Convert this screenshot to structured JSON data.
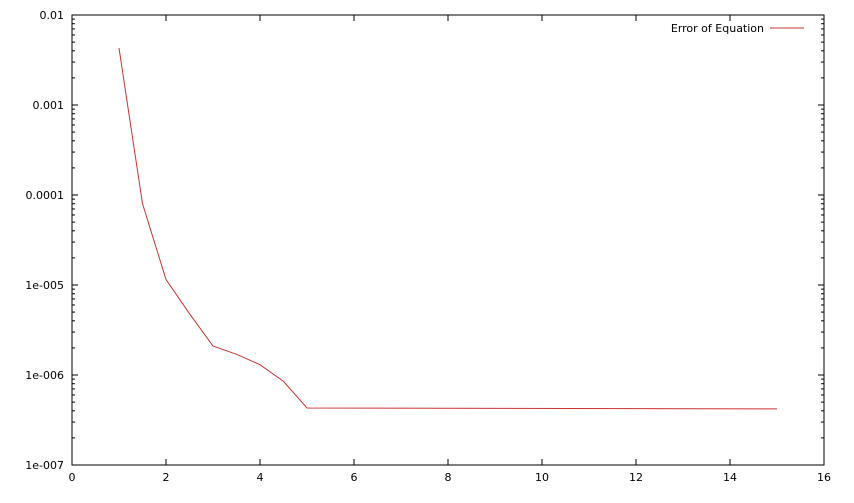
{
  "chart_data": {
    "type": "line",
    "title": "",
    "xlabel": "",
    "ylabel": "",
    "xlim": [
      0,
      16
    ],
    "ylim": [
      1e-07,
      0.01
    ],
    "yscale": "log",
    "grid": false,
    "legend": "top-right",
    "x_ticks": [
      {
        "value": 0,
        "label": "0"
      },
      {
        "value": 2,
        "label": "2"
      },
      {
        "value": 4,
        "label": "4"
      },
      {
        "value": 6,
        "label": "6"
      },
      {
        "value": 8,
        "label": "8"
      },
      {
        "value": 10,
        "label": "10"
      },
      {
        "value": 12,
        "label": "12"
      },
      {
        "value": 14,
        "label": "14"
      },
      {
        "value": 16,
        "label": "16"
      }
    ],
    "y_ticks": [
      {
        "value": 1e-07,
        "label": "1e-007"
      },
      {
        "value": 1e-06,
        "label": "1e-006"
      },
      {
        "value": 1e-05,
        "label": "1e-005"
      },
      {
        "value": 0.0001,
        "label": "0.0001"
      },
      {
        "value": 0.001,
        "label": "0.001"
      },
      {
        "value": 0.01,
        "label": "0.01"
      }
    ],
    "series": [
      {
        "name": "Error of Equation",
        "color": "#cc3333",
        "x": [
          1,
          1.5,
          2,
          2.5,
          3,
          3.5,
          4,
          4.5,
          5,
          15
        ],
        "y": [
          0.0043,
          8e-05,
          1.15e-05,
          4.8e-06,
          2.1e-06,
          1.7e-06,
          1.3e-06,
          8.5e-07,
          4.3e-07,
          4.2e-07
        ]
      }
    ]
  }
}
